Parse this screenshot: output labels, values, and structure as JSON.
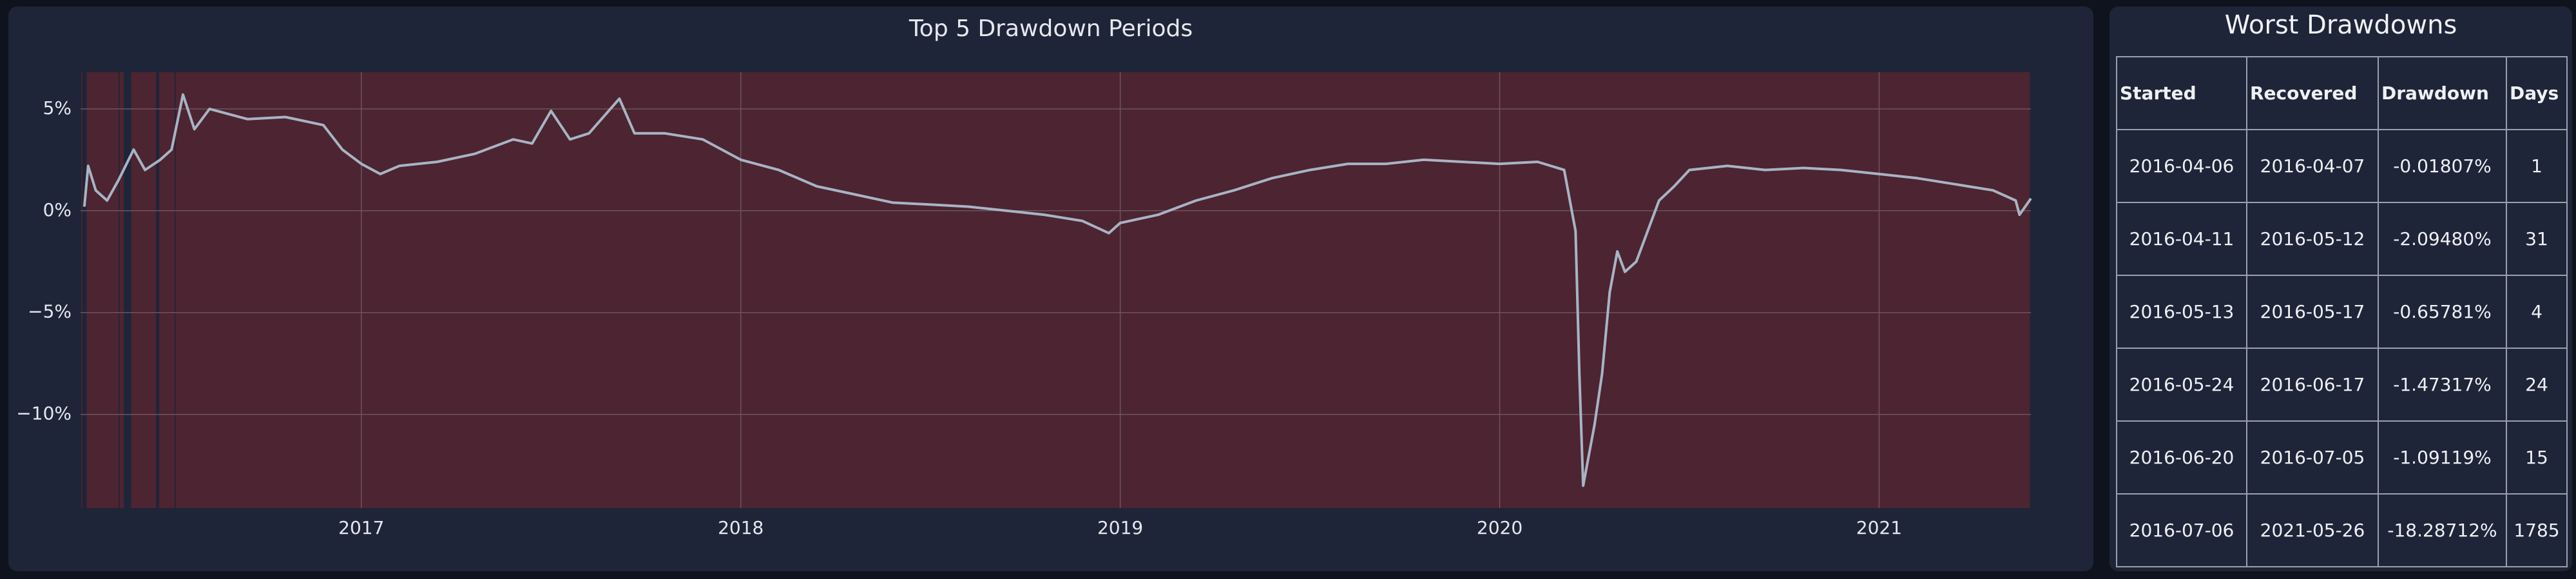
{
  "chart_data": {
    "type": "line",
    "title": "Top 5 Drawdown Periods",
    "x": [
      2016.27,
      2016.28,
      2016.3,
      2016.33,
      2016.36,
      2016.4,
      2016.43,
      2016.47,
      2016.5,
      2016.53,
      2016.56,
      2016.6,
      2016.7,
      2016.8,
      2016.9,
      2016.95,
      2017.0,
      2017.05,
      2017.1,
      2017.2,
      2017.3,
      2017.4,
      2017.45,
      2017.5,
      2017.55,
      2017.6,
      2017.68,
      2017.72,
      2017.8,
      2017.9,
      2018.0,
      2018.1,
      2018.2,
      2018.3,
      2018.4,
      2018.5,
      2018.6,
      2018.7,
      2018.8,
      2018.9,
      2018.97,
      2019.0,
      2019.1,
      2019.2,
      2019.3,
      2019.4,
      2019.5,
      2019.6,
      2019.7,
      2019.8,
      2019.9,
      2020.0,
      2020.1,
      2020.17,
      2020.2,
      2020.21,
      2020.22,
      2020.25,
      2020.27,
      2020.29,
      2020.31,
      2020.33,
      2020.36,
      2020.39,
      2020.42,
      2020.46,
      2020.5,
      2020.6,
      2020.7,
      2020.8,
      2020.9,
      2021.0,
      2021.1,
      2021.2,
      2021.3,
      2021.36,
      2021.37,
      2021.4
    ],
    "values": [
      0.2,
      2.2,
      1.0,
      0.5,
      1.5,
      3.0,
      2.0,
      2.5,
      3.0,
      5.7,
      4.0,
      5.0,
      4.5,
      4.6,
      4.2,
      3.0,
      2.3,
      1.8,
      2.2,
      2.4,
      2.8,
      3.5,
      3.3,
      4.9,
      3.5,
      3.8,
      5.5,
      3.8,
      3.8,
      3.5,
      2.5,
      2.0,
      1.2,
      0.8,
      0.4,
      0.3,
      0.2,
      0.0,
      -0.2,
      -0.5,
      -1.1,
      -0.6,
      -0.2,
      0.5,
      1.0,
      1.6,
      2.0,
      2.3,
      2.3,
      2.5,
      2.4,
      2.3,
      2.4,
      2.0,
      -1.0,
      -8.0,
      -13.5,
      -10.5,
      -8.0,
      -4.0,
      -2.0,
      -3.0,
      -2.5,
      -1.0,
      0.5,
      1.2,
      2.0,
      2.2,
      2.0,
      2.1,
      2.0,
      1.8,
      1.6,
      1.3,
      1.0,
      0.5,
      -0.2,
      0.6
    ],
    "color": "#a7b4c4",
    "highlight_color": "#4d2431",
    "xlim": [
      2016.26,
      2021.4
    ],
    "xticks": [
      2017,
      2018,
      2019,
      2020,
      2021
    ],
    "ylim": [
      -14.6,
      6.8
    ],
    "yticks": [
      {
        "value": 5,
        "label": "5%"
      },
      {
        "value": 0,
        "label": "0%"
      },
      {
        "value": -5,
        "label": "−5%"
      },
      {
        "value": -10,
        "label": "−10%"
      }
    ],
    "grid": true
  },
  "table": {
    "title": "Worst Drawdowns",
    "columns": [
      "Started",
      "Recovered",
      "Drawdown",
      "Days"
    ],
    "rows": [
      [
        "2016-04-06",
        "2016-04-07",
        "-0.01807%",
        "1"
      ],
      [
        "2016-04-11",
        "2016-05-12",
        "-2.09480%",
        "31"
      ],
      [
        "2016-05-13",
        "2016-05-17",
        "-0.65781%",
        "4"
      ],
      [
        "2016-05-24",
        "2016-06-17",
        "-1.47317%",
        "24"
      ],
      [
        "2016-06-20",
        "2016-07-05",
        "-1.09119%",
        "15"
      ],
      [
        "2016-07-06",
        "2021-05-26",
        "-18.28712%",
        "1785"
      ]
    ]
  }
}
